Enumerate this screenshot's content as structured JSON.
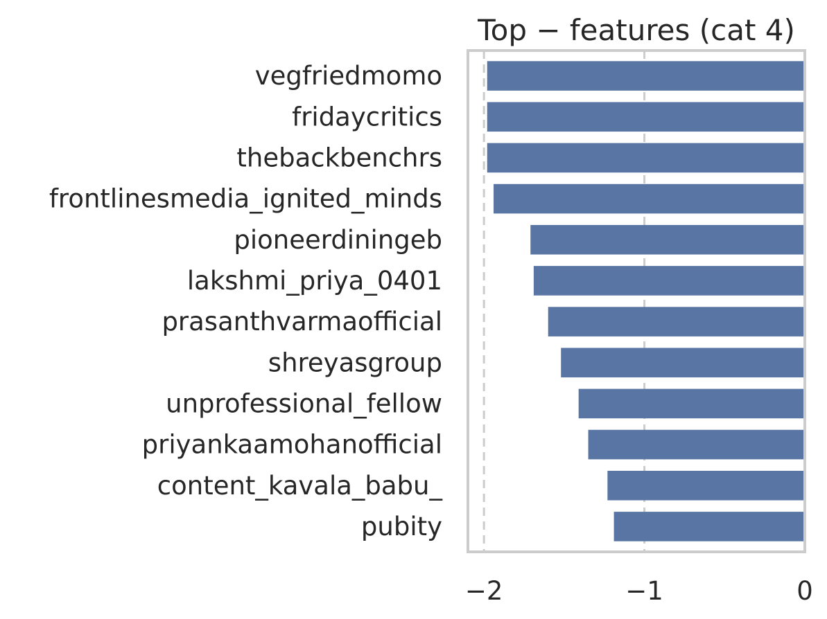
{
  "chart_data": {
    "type": "bar",
    "orientation": "horizontal",
    "title": "Top − features (cat 4)",
    "xlabel": "",
    "ylabel": "",
    "xlim": [
      -2.1,
      0.0
    ],
    "xticks": [
      -2,
      -1,
      0
    ],
    "xtick_labels": [
      "−2",
      "−1",
      "0"
    ],
    "grid": "vertical",
    "categories": [
      "vegfriedmomo",
      "fridaycritics",
      "thebackbenchrs",
      "frontlinesmedia_ignited_minds",
      "pioneerdiningeb",
      "lakshmi_priya_0401",
      "prasanthvarmaofficial",
      "shreyasgroup",
      "unprofessional_fellow",
      "priyankaamohanofficial",
      "content_kavala_babu_",
      "pubity"
    ],
    "values": [
      -1.98,
      -1.98,
      -1.98,
      -1.94,
      -1.71,
      -1.69,
      -1.6,
      -1.52,
      -1.41,
      -1.35,
      -1.23,
      -1.19
    ],
    "colors": {
      "bar": "#5975a4",
      "grid": "#cccccc",
      "frame": "#cccccc"
    }
  }
}
